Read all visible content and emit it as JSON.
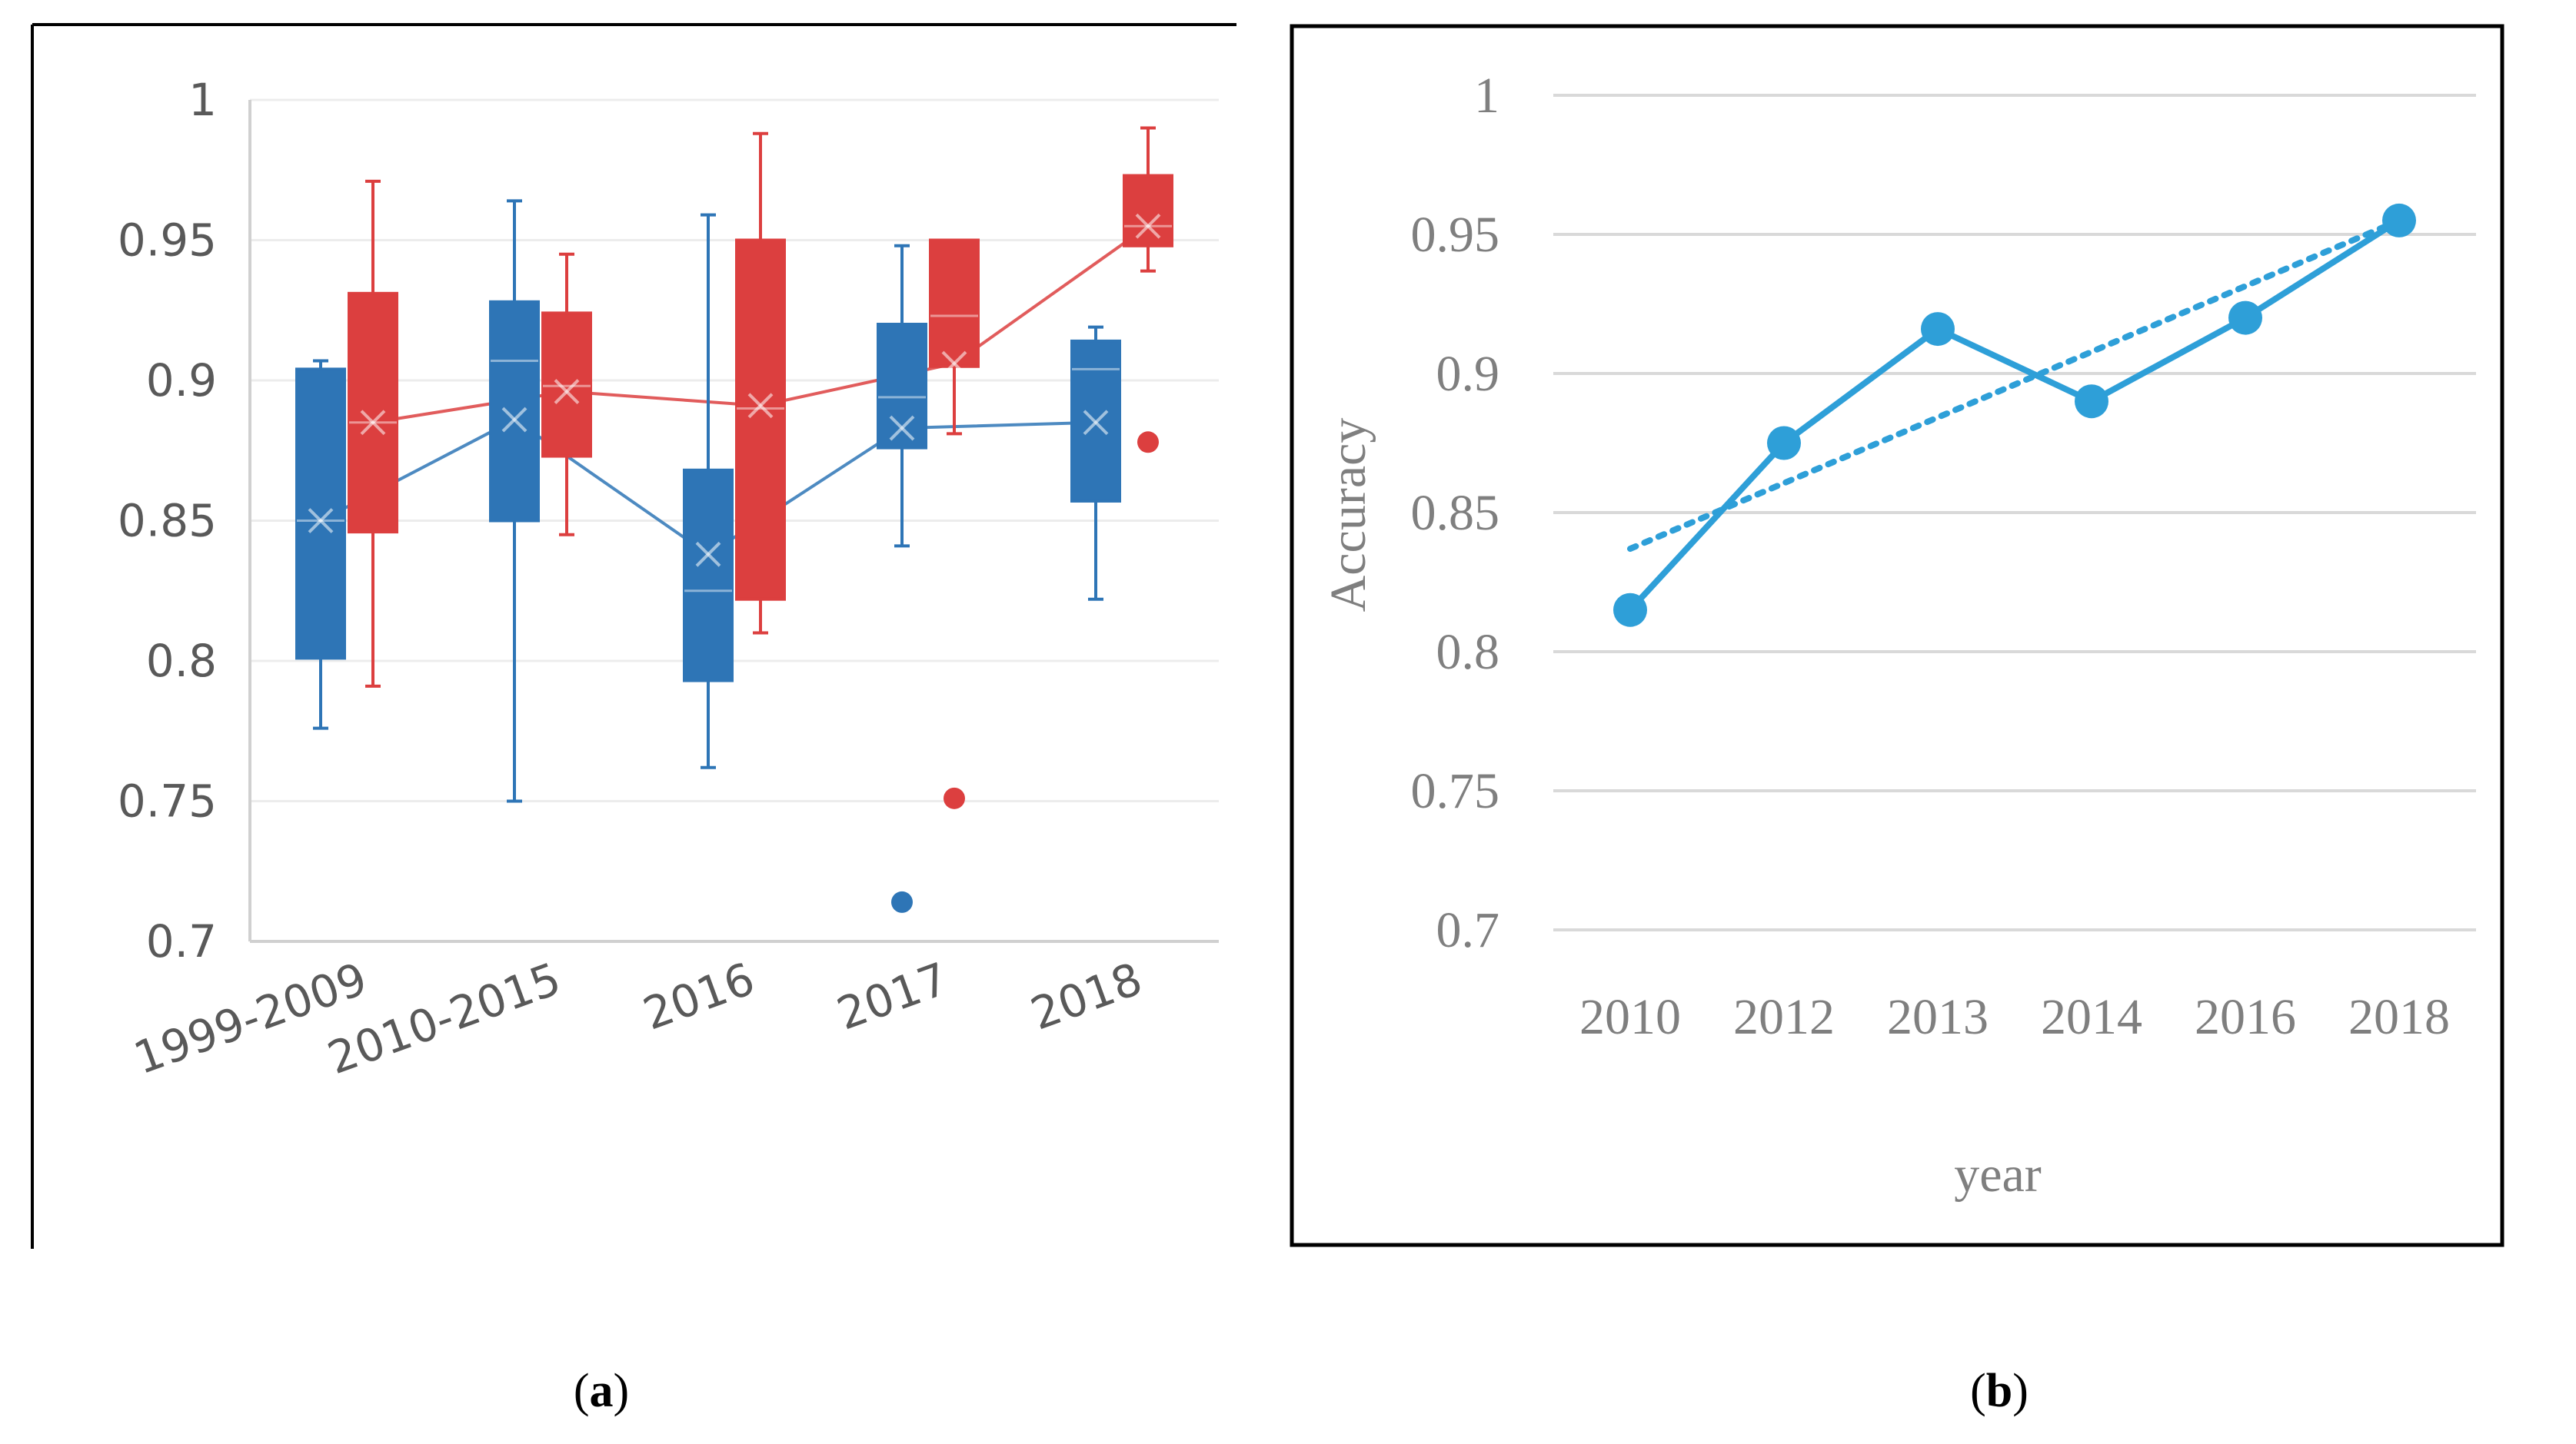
{
  "chart_data": [
    {
      "type": "box",
      "panel_label": "a",
      "title": "",
      "xlabel": "",
      "ylabel": "",
      "ylim": [
        0.7,
        1.0
      ],
      "yticks": [
        "0.7",
        "0.75",
        "0.8",
        "0.85",
        "0.9",
        "0.95",
        "1"
      ],
      "categories": [
        "1999-2009",
        "2010-2015",
        "2016",
        "2017",
        "2018"
      ],
      "series": [
        {
          "name": "blue",
          "color": "#2e75b6",
          "boxes": [
            {
              "min": 0.776,
              "q1": 0.801,
              "median": 0.85,
              "q3": 0.904,
              "max": 0.907,
              "mean": 0.85,
              "outliers": []
            },
            {
              "min": 0.75,
              "q1": 0.85,
              "median": 0.907,
              "q3": 0.928,
              "max": 0.964,
              "mean": 0.886,
              "outliers": []
            },
            {
              "min": 0.762,
              "q1": 0.793,
              "median": 0.825,
              "q3": 0.868,
              "max": 0.959,
              "mean": 0.838,
              "outliers": []
            },
            {
              "min": 0.841,
              "q1": 0.876,
              "median": 0.894,
              "q3": 0.92,
              "max": 0.948,
              "mean": 0.883,
              "outliers": [
                0.714
              ]
            },
            {
              "min": 0.822,
              "q1": 0.857,
              "median": 0.904,
              "q3": 0.914,
              "max": 0.919,
              "mean": 0.885,
              "outliers": []
            }
          ]
        },
        {
          "name": "red",
          "color": "#dc3f3f",
          "boxes": [
            {
              "min": 0.791,
              "q1": 0.846,
              "median": 0.885,
              "q3": 0.931,
              "max": 0.971,
              "mean": 0.885,
              "outliers": []
            },
            {
              "min": 0.845,
              "q1": 0.873,
              "median": 0.898,
              "q3": 0.924,
              "max": 0.945,
              "mean": 0.896,
              "outliers": []
            },
            {
              "min": 0.81,
              "q1": 0.822,
              "median": 0.89,
              "q3": 0.95,
              "max": 0.988,
              "mean": 0.891,
              "outliers": []
            },
            {
              "min": 0.881,
              "q1": 0.905,
              "median": 0.923,
              "q3": 0.95,
              "max": 0.95,
              "mean": 0.906,
              "outliers": [
                0.751
              ]
            },
            {
              "min": 0.939,
              "q1": 0.948,
              "median": 0.955,
              "q3": 0.973,
              "max": 0.99,
              "mean": 0.955,
              "outliers": [
                0.878
              ]
            }
          ]
        }
      ],
      "grid": true
    },
    {
      "type": "line",
      "panel_label": "b",
      "title": "",
      "xlabel": "year",
      "ylabel": "Accuracy",
      "ylim": [
        0.7,
        1.0
      ],
      "yticks": [
        "0.7",
        "0.75",
        "0.8",
        "0.85",
        "0.9",
        "0.95",
        "1"
      ],
      "categories": [
        "2010",
        "2012",
        "2013",
        "2014",
        "2016",
        "2018"
      ],
      "series": [
        {
          "name": "accuracy",
          "color": "#2e9fd8",
          "values": [
            0.815,
            0.875,
            0.916,
            0.89,
            0.92,
            0.955
          ]
        }
      ],
      "trendline": {
        "type": "linear",
        "style": "dotted",
        "color": "#2e9fd8",
        "start": 0.837,
        "end": 0.955
      },
      "grid": true
    }
  ],
  "captions": {
    "a": {
      "open": "(",
      "letter": "a",
      "close": ")"
    },
    "b": {
      "open": "(",
      "letter": "b",
      "close": ")"
    }
  }
}
